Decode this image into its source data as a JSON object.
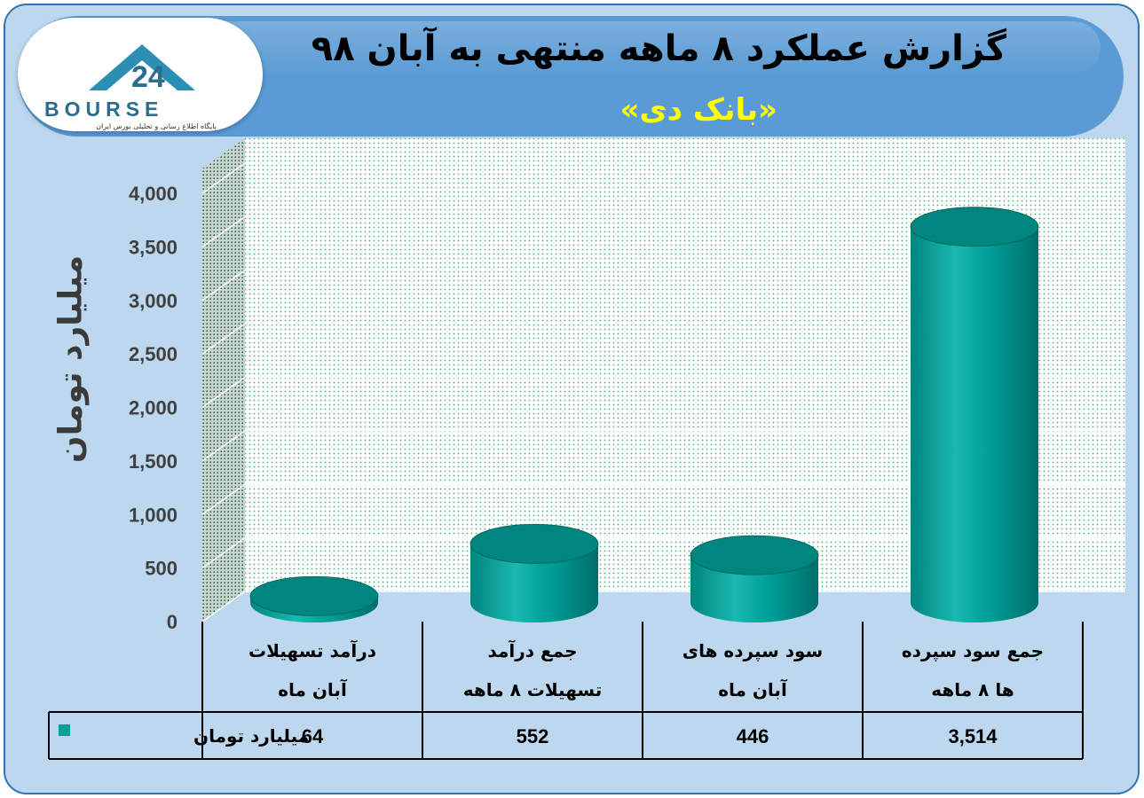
{
  "header": {
    "title": "گزارش عملکرد ۸ ماهه منتهی به آبان ۹۸",
    "subtitle": "«بانک دی»"
  },
  "logo": {
    "text": "BOURSE",
    "mark": "24",
    "caption": "پایگاه اطلاع رسانی و تحلیلی بورس ایران"
  },
  "colors": {
    "bar": "#00a19a",
    "bar_top": "#00857f",
    "bar_edge": "#005e59",
    "banner": "#5b9bd5",
    "frame": "#bdd7ee",
    "subtitle": "#ffff00"
  },
  "chart_data": {
    "type": "bar",
    "title": "",
    "xlabel": "",
    "ylabel": "میلیارد تومان",
    "ylim": [
      0,
      4000
    ],
    "yticks": [
      "0",
      "500",
      "1,000",
      "1,500",
      "2,000",
      "2,500",
      "3,000",
      "3,500",
      "4,000"
    ],
    "grid": true,
    "categories": [
      [
        "درآمد تسهیلات",
        "آبان ماه"
      ],
      [
        "جمع درآمد",
        "تسهیلات ۸ ماهه"
      ],
      [
        "سود سپرده های",
        "آبان ماه"
      ],
      [
        "جمع سود سپرده",
        "ها ۸ ماهه"
      ]
    ],
    "series": [
      {
        "name": "میلیارد تومان",
        "values": [
          64,
          552,
          446,
          3514
        ],
        "labels": [
          "64",
          "552",
          "446",
          "3,514"
        ]
      }
    ],
    "legend": "data-table"
  }
}
